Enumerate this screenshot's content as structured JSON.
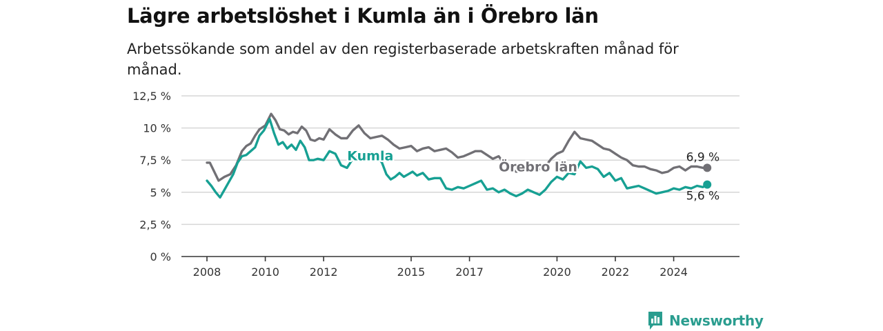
{
  "header": {
    "title": "Lägre arbetslöshet i Kumla än i Örebro län",
    "subtitle": "Arbetssökande som andel av den registerbaserade arbetskraften månad för månad."
  },
  "brand": {
    "name": "Newsworthy",
    "icon": "newsworthy-logo-icon",
    "color": "#2a9d8f"
  },
  "chart_data": {
    "type": "line",
    "title": "Lägre arbetslöshet i Kumla än i Örebro län",
    "subtitle": "Arbetssökande som andel av den registerbaserade arbetskraften månad för månad.",
    "xlabel": "",
    "ylabel": "",
    "ylim": [
      0,
      12.5
    ],
    "xlim": [
      2008.0,
      2025.5
    ],
    "y_ticks": [
      0,
      2.5,
      5,
      7.5,
      10,
      12.5
    ],
    "y_tick_labels": [
      "0 %",
      "2,5 %",
      "5 %",
      "7,5 %",
      "10 %",
      "12,5 %"
    ],
    "x_ticks": [
      2008,
      2010,
      2012,
      2015,
      2017,
      2020,
      2022,
      2024
    ],
    "x_tick_labels": [
      "2008",
      "2010",
      "2012",
      "2015",
      "2017",
      "2020",
      "2022",
      "2024"
    ],
    "grid": true,
    "legend": "inline labels",
    "series": [
      {
        "name": "Örebro län",
        "color": "#717075",
        "end_label": "6,9 %",
        "x": [
          2008.0,
          2008.1,
          2008.25,
          2008.4,
          2008.6,
          2008.8,
          2009.0,
          2009.2,
          2009.35,
          2009.5,
          2009.65,
          2009.8,
          2010.0,
          2010.2,
          2010.35,
          2010.5,
          2010.65,
          2010.8,
          2010.95,
          2011.1,
          2011.25,
          2011.4,
          2011.55,
          2011.7,
          2011.85,
          2012.0,
          2012.2,
          2012.4,
          2012.6,
          2012.8,
          2013.0,
          2013.2,
          2013.4,
          2013.6,
          2013.8,
          2014.0,
          2014.2,
          2014.4,
          2014.6,
          2014.8,
          2015.0,
          2015.2,
          2015.4,
          2015.6,
          2015.8,
          2016.0,
          2016.2,
          2016.4,
          2016.6,
          2016.8,
          2017.0,
          2017.2,
          2017.4,
          2017.6,
          2017.8,
          2018.0,
          2018.2,
          2018.4,
          2018.6,
          2018.8,
          2019.0,
          2019.2,
          2019.4,
          2019.6,
          2019.8,
          2020.0,
          2020.2,
          2020.4,
          2020.6,
          2020.8,
          2021.0,
          2021.2,
          2021.4,
          2021.6,
          2021.8,
          2022.0,
          2022.2,
          2022.4,
          2022.6,
          2022.8,
          2023.0,
          2023.2,
          2023.4,
          2023.6,
          2023.8,
          2024.0,
          2024.2,
          2024.4,
          2024.6,
          2024.8,
          2025.0,
          2025.15
        ],
        "values": [
          7.3,
          7.3,
          6.6,
          5.9,
          6.2,
          6.4,
          7.1,
          8.2,
          8.6,
          8.8,
          9.4,
          9.9,
          10.2,
          11.1,
          10.6,
          9.9,
          9.8,
          9.5,
          9.7,
          9.6,
          10.1,
          9.8,
          9.1,
          9.0,
          9.2,
          9.1,
          9.9,
          9.5,
          9.2,
          9.2,
          9.8,
          10.2,
          9.6,
          9.2,
          9.3,
          9.4,
          9.1,
          8.7,
          8.4,
          8.5,
          8.6,
          8.2,
          8.4,
          8.5,
          8.2,
          8.3,
          8.4,
          8.1,
          7.7,
          7.8,
          8.0,
          8.2,
          8.2,
          7.9,
          7.6,
          7.8,
          7.2,
          6.9,
          6.6,
          6.7,
          6.8,
          7.0,
          6.8,
          7.0,
          7.6,
          8.0,
          8.2,
          9.0,
          9.7,
          9.2,
          9.1,
          9.0,
          8.7,
          8.4,
          8.3,
          8.0,
          7.7,
          7.5,
          7.1,
          7.0,
          7.0,
          6.8,
          6.7,
          6.5,
          6.6,
          6.9,
          7.0,
          6.7,
          7.0,
          7.0,
          6.9,
          6.9
        ]
      },
      {
        "name": "Kumla",
        "color": "#17a093",
        "end_label": "5,6 %",
        "x": [
          2008.0,
          2008.15,
          2008.3,
          2008.45,
          2008.6,
          2008.75,
          2008.9,
          2009.05,
          2009.2,
          2009.35,
          2009.5,
          2009.65,
          2009.8,
          2009.95,
          2010.15,
          2010.3,
          2010.45,
          2010.6,
          2010.75,
          2010.9,
          2011.05,
          2011.2,
          2011.35,
          2011.5,
          2011.65,
          2011.8,
          2012.0,
          2012.2,
          2012.4,
          2012.6,
          2012.8,
          2013.0,
          2013.2,
          2013.4,
          2013.6,
          2013.8,
          2014.0,
          2014.15,
          2014.3,
          2014.45,
          2014.6,
          2014.75,
          2014.9,
          2015.05,
          2015.2,
          2015.4,
          2015.6,
          2015.8,
          2016.0,
          2016.2,
          2016.4,
          2016.6,
          2016.8,
          2017.0,
          2017.2,
          2017.4,
          2017.6,
          2017.8,
          2018.0,
          2018.2,
          2018.4,
          2018.6,
          2018.8,
          2019.0,
          2019.2,
          2019.4,
          2019.6,
          2019.8,
          2020.0,
          2020.2,
          2020.4,
          2020.6,
          2020.8,
          2021.0,
          2021.2,
          2021.4,
          2021.6,
          2021.8,
          2022.0,
          2022.2,
          2022.4,
          2022.6,
          2022.8,
          2023.0,
          2023.2,
          2023.4,
          2023.6,
          2023.8,
          2024.0,
          2024.2,
          2024.4,
          2024.6,
          2024.8,
          2025.0,
          2025.15
        ],
        "values": [
          5.9,
          5.5,
          5.0,
          4.6,
          5.2,
          5.8,
          6.4,
          7.3,
          7.8,
          7.9,
          8.2,
          8.5,
          9.4,
          9.8,
          10.7,
          9.6,
          8.7,
          8.9,
          8.4,
          8.7,
          8.3,
          9.0,
          8.5,
          7.5,
          7.5,
          7.6,
          7.5,
          8.2,
          8.0,
          7.1,
          6.9,
          7.6,
          7.8,
          7.7,
          8.1,
          7.9,
          7.3,
          6.4,
          6.0,
          6.2,
          6.5,
          6.2,
          6.4,
          6.6,
          6.3,
          6.5,
          6.0,
          6.1,
          6.1,
          5.3,
          5.2,
          5.4,
          5.3,
          5.5,
          5.7,
          5.9,
          5.2,
          5.3,
          5.0,
          5.2,
          4.9,
          4.7,
          4.9,
          5.2,
          5.0,
          4.8,
          5.2,
          5.8,
          6.2,
          6.0,
          6.5,
          6.4,
          7.4,
          6.9,
          7.0,
          6.8,
          6.2,
          6.5,
          5.9,
          6.1,
          5.3,
          5.4,
          5.5,
          5.3,
          5.1,
          4.9,
          5.0,
          5.1,
          5.3,
          5.2,
          5.4,
          5.3,
          5.5,
          5.4,
          5.6
        ]
      }
    ]
  }
}
